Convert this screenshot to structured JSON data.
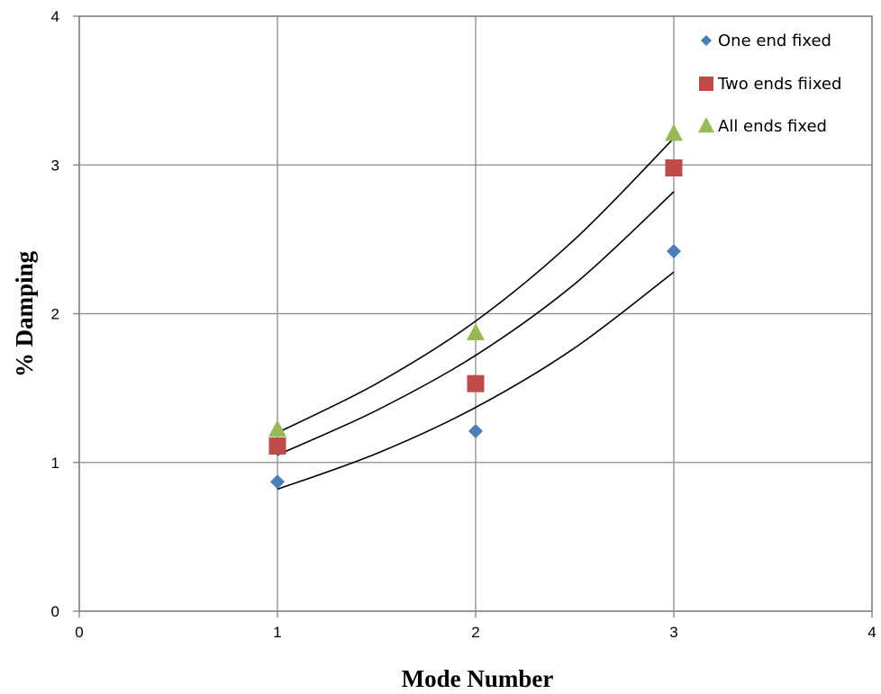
{
  "chart_data": {
    "type": "scatter",
    "xlabel": "Mode Number",
    "ylabel": "% Damping",
    "xlim": [
      0,
      4
    ],
    "ylim": [
      0,
      4
    ],
    "xticks": [
      "0",
      "1",
      "2",
      "3",
      "4"
    ],
    "yticks": [
      "0",
      "1",
      "2",
      "3",
      "4"
    ],
    "grid": true,
    "legend_position": "top-right",
    "series": [
      {
        "name": "One end fixed",
        "marker": "diamond",
        "color": "#4a7ebb",
        "x": [
          1,
          2,
          3
        ],
        "y": [
          0.87,
          1.21,
          2.42
        ]
      },
      {
        "name": "Two ends fiixed",
        "marker": "square",
        "color": "#be4b48",
        "x": [
          1,
          2,
          3
        ],
        "y": [
          1.11,
          1.53,
          2.98
        ]
      },
      {
        "name": "All ends fixed",
        "marker": "triangle",
        "color": "#98b954",
        "x": [
          1,
          2,
          3
        ],
        "y": [
          1.22,
          1.87,
          3.21
        ]
      }
    ],
    "trendlines": [
      {
        "type": "exponential",
        "x": [
          1,
          1.5,
          2,
          2.5,
          3
        ],
        "y": [
          0.82,
          1.06,
          1.37,
          1.77,
          2.28
        ]
      },
      {
        "type": "exponential",
        "x": [
          1,
          1.5,
          2,
          2.5,
          3
        ],
        "y": [
          1.05,
          1.35,
          1.72,
          2.2,
          2.82
        ]
      },
      {
        "type": "exponential",
        "x": [
          1,
          1.5,
          2,
          2.5,
          3
        ],
        "y": [
          1.2,
          1.53,
          1.95,
          2.5,
          3.18
        ]
      }
    ]
  }
}
